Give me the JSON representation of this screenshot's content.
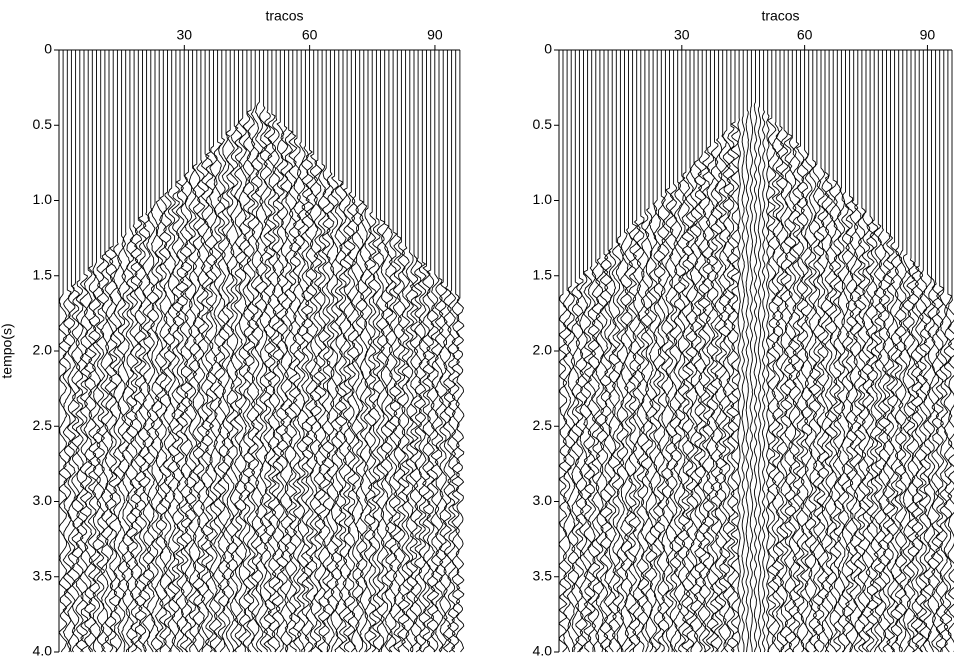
{
  "chart_data": [
    {
      "type": "wiggle",
      "xlabel": "tracos",
      "ylabel": "tempo(s)",
      "xlim": [
        0,
        96
      ],
      "xticks": [
        30,
        60,
        90
      ],
      "ylim": [
        0,
        4
      ],
      "y_inverted": true,
      "yticks": [
        0,
        0.5,
        {
          "value": 1,
          "label": "1.0"
        },
        1.5,
        {
          "value": 2,
          "label": "2.0"
        },
        2.5,
        {
          "value": 3,
          "label": "3.0"
        },
        3.5,
        {
          "value": 4,
          "label": "4.0"
        }
      ],
      "color": "#000000"
    },
    {
      "type": "wiggle",
      "xlabel": "tracos",
      "xlim": [
        0,
        96
      ],
      "xticks": [
        30,
        60,
        90
      ],
      "ylim": [
        0,
        4
      ],
      "y_inverted": true,
      "yticks": [
        0,
        0.5,
        {
          "value": 1,
          "label": "1.0"
        },
        1.5,
        {
          "value": 2,
          "label": "2.0"
        },
        2.5,
        {
          "value": 3,
          "label": "3.0"
        },
        3.5,
        {
          "value": 4,
          "label": "4.0"
        }
      ],
      "color": "#000000"
    }
  ]
}
